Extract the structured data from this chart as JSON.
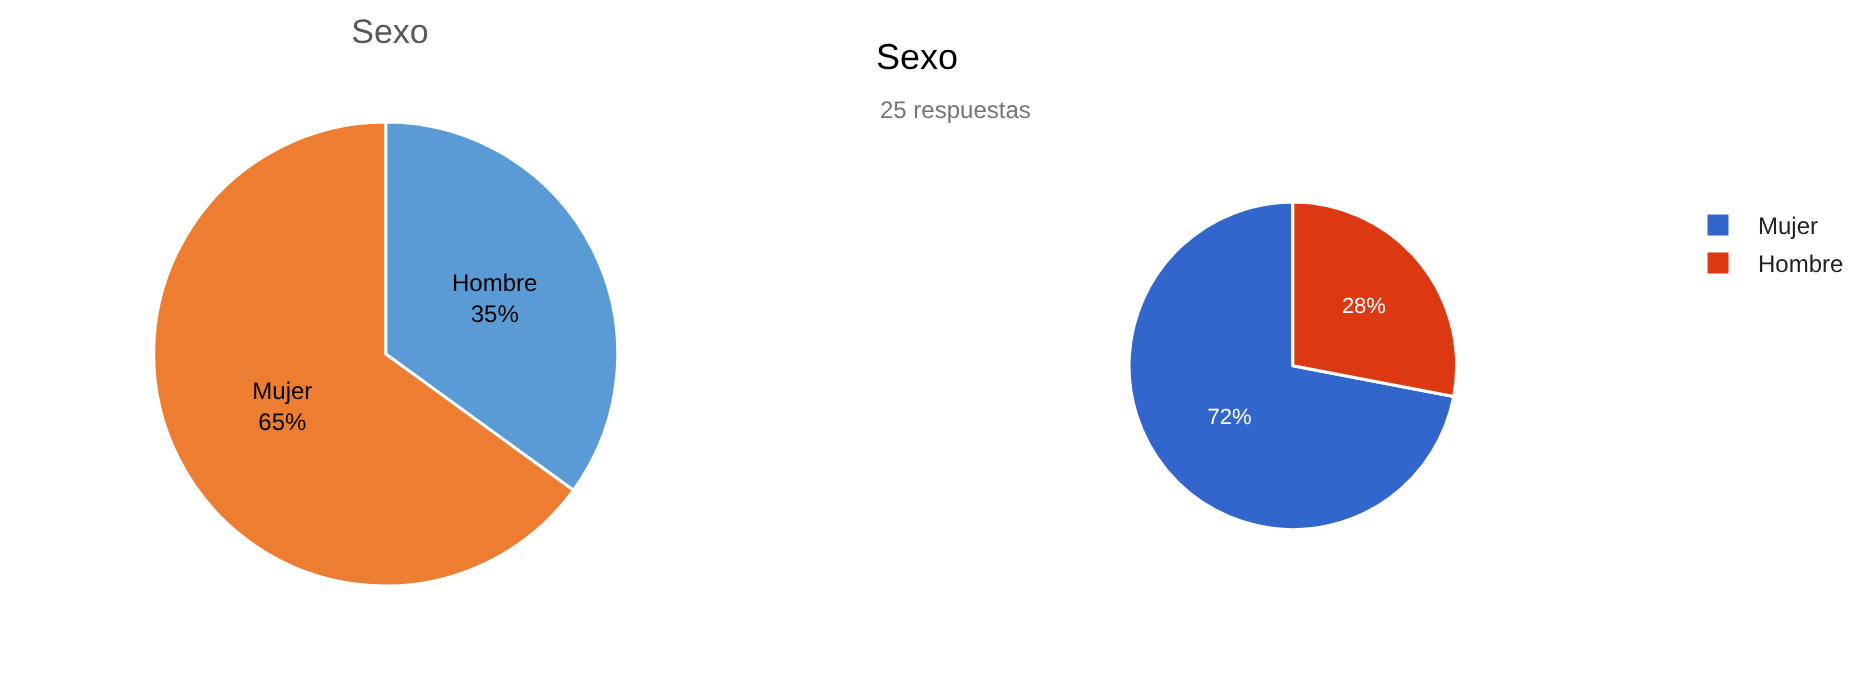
{
  "chart_data": [
    {
      "type": "pie",
      "title": "Sexo",
      "categories": [
        "Hombre",
        "Mujer"
      ],
      "values": [
        35,
        65
      ],
      "colors": [
        "#5b9bd5",
        "#ed7d31"
      ],
      "value_labels": [
        "35%",
        "65%"
      ],
      "legend": false
    },
    {
      "type": "pie",
      "title": "Sexo",
      "subtitle": "25 respuestas",
      "categories": [
        "Mujer",
        "Hombre"
      ],
      "values": [
        72,
        28
      ],
      "colors": [
        "#3366cc",
        "#dc3912"
      ],
      "value_labels": [
        "72%",
        "28%"
      ],
      "legend": "top right"
    }
  ]
}
